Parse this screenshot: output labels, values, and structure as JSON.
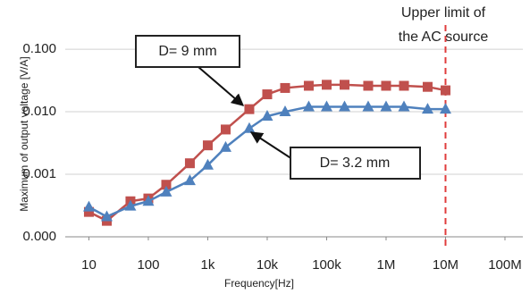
{
  "chart_data": {
    "type": "line",
    "x_label": "Frequency[Hz]",
    "y_label": "Maximum of output voltage [V/A]",
    "x_log": true,
    "y_log": true,
    "grid": true,
    "x": [
      10,
      20,
      50,
      100,
      200,
      500,
      1000,
      2000,
      5000,
      10000,
      20000,
      50000,
      100000,
      200000,
      500000,
      1000000,
      2000000,
      5000000,
      10000000
    ],
    "series": [
      {
        "color": "#c0504d",
        "marker": "square",
        "values": [
          0.00025,
          0.00018,
          0.00037,
          0.00041,
          0.00068,
          0.0015,
          0.0029,
          0.0052,
          0.011,
          0.019,
          0.024,
          0.026,
          0.027,
          0.027,
          0.026,
          0.026,
          0.026,
          0.025,
          0.022
        ]
      },
      {
        "color": "#4f81bd",
        "marker": "triangle",
        "values": [
          0.0003,
          0.00021,
          0.00031,
          0.00037,
          0.00052,
          0.00079,
          0.0014,
          0.0027,
          0.0054,
          0.0085,
          0.01,
          0.012,
          0.012,
          0.012,
          0.012,
          0.012,
          0.012,
          0.011,
          0.011
        ]
      }
    ],
    "xlim": [
      4,
      200000000
    ],
    "xticks": [
      10,
      100,
      {
        "value": 1000,
        "label": "1k"
      },
      {
        "value": 10000,
        "label": "10k"
      },
      {
        "value": 100000,
        "label": "100k"
      },
      {
        "value": 1000000,
        "label": "1M"
      },
      {
        "value": 10000000,
        "label": "10M"
      },
      {
        "value": 100000000,
        "label": "100M"
      }
    ],
    "ylim": [
      0.0001,
      0.2
    ],
    "yticks": [
      {
        "value": 0.0001,
        "label": "0.000"
      },
      {
        "value": 0.001,
        "label": "0.001"
      },
      {
        "value": 0.01,
        "label": "0.010"
      },
      {
        "value": 0.1,
        "label": "0.100"
      }
    ],
    "limit_line": {
      "x": 10000000,
      "color": "#e03c3c",
      "label": [
        "Upper limit of",
        "the AC source"
      ]
    },
    "annotations": [
      "D= 9 mm",
      "D= 3.2 mm"
    ]
  }
}
